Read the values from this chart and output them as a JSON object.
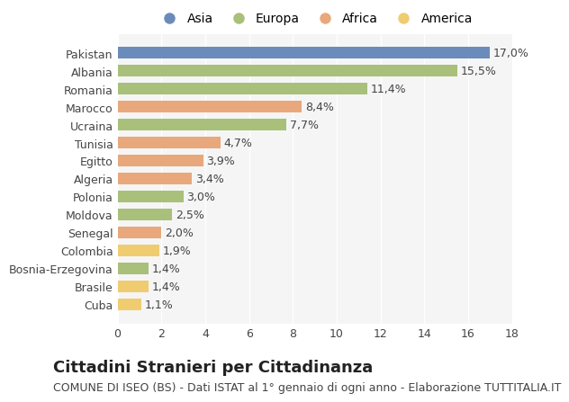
{
  "countries": [
    "Pakistan",
    "Albania",
    "Romania",
    "Marocco",
    "Ucraina",
    "Tunisia",
    "Egitto",
    "Algeria",
    "Polonia",
    "Moldova",
    "Senegal",
    "Colombia",
    "Bosnia-Erzegovina",
    "Brasile",
    "Cuba"
  ],
  "values": [
    17.0,
    15.5,
    11.4,
    8.4,
    7.7,
    4.7,
    3.9,
    3.4,
    3.0,
    2.5,
    2.0,
    1.9,
    1.4,
    1.4,
    1.1
  ],
  "labels": [
    "17,0%",
    "15,5%",
    "11,4%",
    "8,4%",
    "7,7%",
    "4,7%",
    "3,9%",
    "3,4%",
    "3,0%",
    "2,5%",
    "2,0%",
    "1,9%",
    "1,4%",
    "1,4%",
    "1,1%"
  ],
  "continents": [
    "Asia",
    "Europa",
    "Europa",
    "Africa",
    "Europa",
    "Africa",
    "Africa",
    "Africa",
    "Europa",
    "Europa",
    "Africa",
    "America",
    "Europa",
    "America",
    "America"
  ],
  "colors": {
    "Asia": "#6b8cba",
    "Europa": "#a8c07a",
    "Africa": "#e8a87c",
    "America": "#f0cc70"
  },
  "legend_order": [
    "Asia",
    "Europa",
    "Africa",
    "America"
  ],
  "xlim": [
    0,
    18
  ],
  "xticks": [
    0,
    2,
    4,
    6,
    8,
    10,
    12,
    14,
    16,
    18
  ],
  "title": "Cittadini Stranieri per Cittadinanza",
  "subtitle": "COMUNE DI ISEO (BS) - Dati ISTAT al 1° gennaio di ogni anno - Elaborazione TUTTITALIA.IT",
  "bg_color": "#ffffff",
  "plot_bg_color": "#f5f5f5",
  "grid_color": "#ffffff",
  "title_fontsize": 13,
  "subtitle_fontsize": 9,
  "label_fontsize": 9,
  "tick_fontsize": 9,
  "bar_height": 0.65
}
